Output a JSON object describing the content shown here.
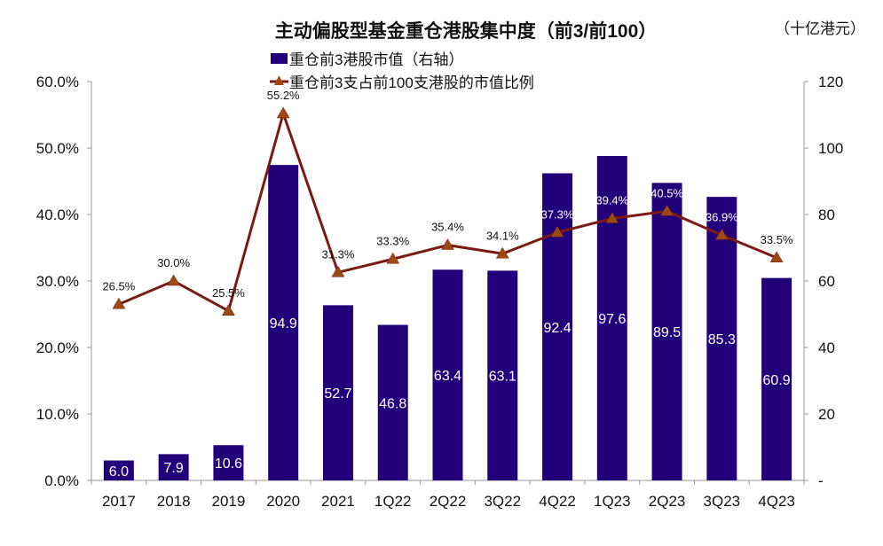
{
  "chart_data": {
    "type": "bar+line",
    "title": "主动偏股型基金重仓港股集中度（前3/前100）",
    "unit_note": "（十亿港元）",
    "categories": [
      "2017",
      "2018",
      "2019",
      "2020",
      "2021",
      "1Q22",
      "2Q22",
      "3Q22",
      "4Q22",
      "1Q23",
      "2Q23",
      "3Q23",
      "4Q23"
    ],
    "series": [
      {
        "name": "重仓前3港股市值（右轴）",
        "type": "bar",
        "axis": "right",
        "color": "#22007A",
        "values": [
          6.0,
          7.9,
          10.6,
          94.9,
          52.7,
          46.8,
          63.4,
          63.1,
          92.4,
          97.6,
          89.5,
          85.3,
          60.9
        ],
        "labels": [
          "6.0",
          "7.9",
          "10.6",
          "94.9",
          "52.7",
          "46.8",
          "63.4",
          "63.1",
          "92.4",
          "97.6",
          "89.5",
          "85.3",
          "60.9"
        ]
      },
      {
        "name": "重仓前3支占前100支港股的市值比例",
        "type": "line",
        "axis": "left",
        "color": "#7B1A12",
        "marker_color": "#9C4A14",
        "values": [
          26.5,
          30.0,
          25.5,
          55.2,
          31.3,
          33.3,
          35.4,
          34.1,
          37.3,
          39.4,
          40.5,
          36.9,
          33.5
        ],
        "labels": [
          "26.5%",
          "30.0%",
          "25.5%",
          "55.2%",
          "31.3%",
          "33.3%",
          "35.4%",
          "34.1%",
          "37.3%",
          "39.4%",
          "40.5%",
          "36.9%",
          "33.5%"
        ]
      }
    ],
    "left_axis": {
      "ylim": [
        0,
        60
      ],
      "ticks": [
        "0.0%",
        "10.0%",
        "20.0%",
        "30.0%",
        "40.0%",
        "50.0%",
        "60.0%"
      ]
    },
    "right_axis": {
      "ylim": [
        0,
        120
      ],
      "ticks": [
        "-",
        "20",
        "40",
        "60",
        "80",
        "100",
        "120"
      ]
    },
    "grid": false,
    "legend_placement": "top-left"
  }
}
